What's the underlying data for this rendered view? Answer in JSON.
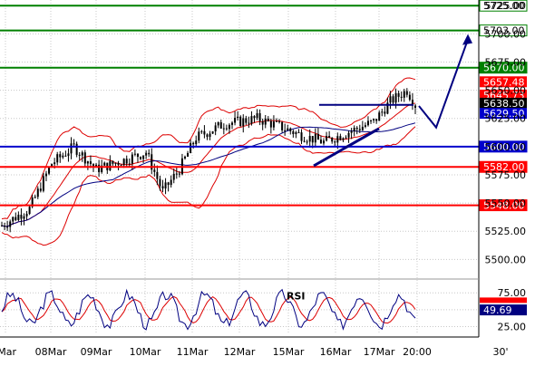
{
  "chart_data": [
    {
      "type": "candlestick",
      "panel": "price",
      "x_labels": [
        "Mar",
        "08Mar",
        "09Mar",
        "10Mar",
        "11Mar",
        "12Mar",
        "15Mar",
        "16Mar",
        "17Mar",
        "20:00",
        "30'"
      ],
      "y_ticks": [
        5500.0,
        5525.0,
        5550.0,
        5575.0,
        5600.0,
        5625.0,
        5650.0,
        5675.0,
        5700.0,
        5725.0
      ],
      "ylim": [
        5485,
        5730
      ],
      "grid": true,
      "levels": [
        {
          "label": "5725.00",
          "value": 5725.0,
          "color": "#008000",
          "label_bg": "#ffffff",
          "label_fg": "#000000"
        },
        {
          "label": "5703.00",
          "value": 5703.0,
          "color": "#008000",
          "label_bg": "#ffffff",
          "label_fg": "#000000"
        },
        {
          "label": "5670.00",
          "value": 5670.0,
          "color": "#008000",
          "label_bg": "#008000",
          "label_fg": "#ffffff"
        },
        {
          "label": "5600.00",
          "value": 5600.0,
          "color": "#0000cc",
          "label_bg": "#0000cc",
          "label_fg": "#ffffff"
        },
        {
          "label": "5582.00",
          "value": 5582.0,
          "color": "#ff0000",
          "label_bg": "#ff0000",
          "label_fg": "#ffffff"
        },
        {
          "label": "5548.00",
          "value": 5548.0,
          "color": "#ff0000",
          "label_bg": "#ff0000",
          "label_fg": "#ffffff"
        }
      ],
      "price_tags": [
        {
          "label": "5657.48",
          "value": 5657.48,
          "bg": "#ff0000",
          "fg": "#ffffff"
        },
        {
          "label": "5645.73",
          "value": 5645.73,
          "bg": "#ff0000",
          "fg": "#ffffff"
        },
        {
          "label": "5638.50",
          "value": 5638.5,
          "bg": "#000000",
          "fg": "#ffffff"
        },
        {
          "label": "5629.50",
          "value": 5629.5,
          "bg": "#0000cc",
          "fg": "#ffffff"
        }
      ],
      "annotations": {
        "trend_line": [
          [
            346,
            5583
          ],
          [
            418,
            5616
          ]
        ],
        "resistance_line": [
          [
            352,
            5637
          ],
          [
            456,
            5637
          ]
        ],
        "forecast_arrow": [
          [
            462,
            5636
          ],
          [
            481,
            5617
          ],
          [
            516,
            5695
          ]
        ]
      },
      "colors": {
        "candles": "#000000",
        "bollinger": "#dd0000",
        "moving_average": "#000080",
        "annotation": "#000080",
        "grid": "#c8c8c8"
      }
    },
    {
      "type": "line",
      "panel": "oscillator",
      "title": "RSI",
      "y_ticks": [
        25.0,
        50.0,
        75.0
      ],
      "ylim": [
        15,
        90
      ],
      "series": [
        {
          "name": "RSI",
          "color": "#000080"
        },
        {
          "color": "#dd0000"
        }
      ],
      "current_tags": [
        {
          "label": "49.69",
          "value": 49.69,
          "bg": "#000080",
          "fg": "#ffffff"
        }
      ]
    }
  ]
}
